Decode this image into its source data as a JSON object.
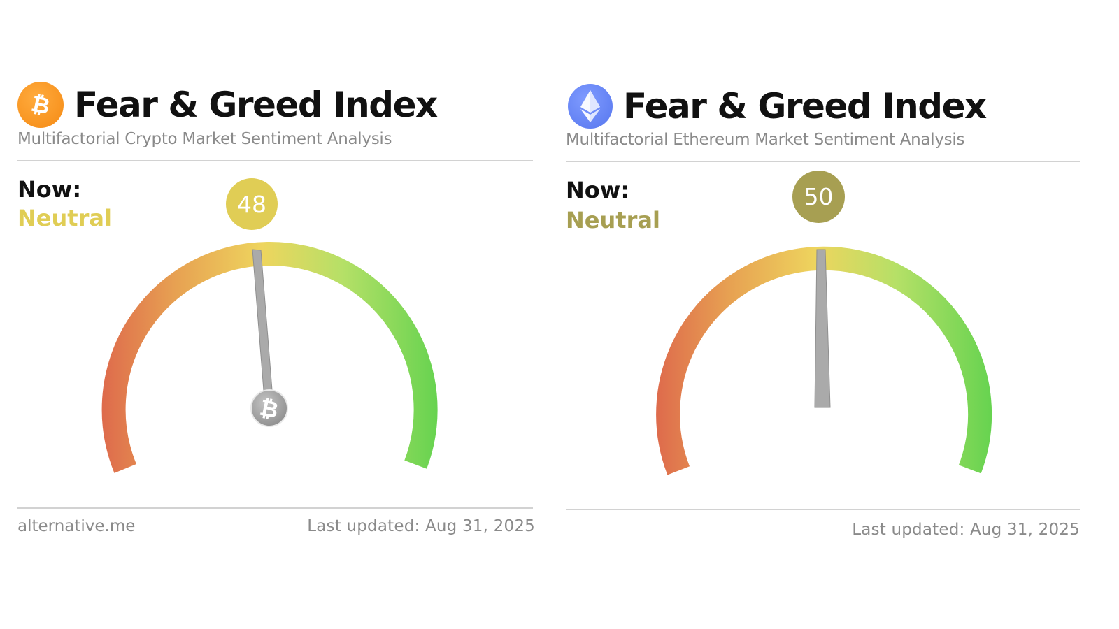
{
  "panels": [
    {
      "coin_icon": "bitcoin-icon",
      "title": "Fear & Greed Index",
      "subtitle": "Multifactorial Crypto Market Sentiment Analysis",
      "now_label": "Now:",
      "classification": "Neutral",
      "value": "48",
      "value_color": "#e0cd55",
      "classification_color": "#e0cd55",
      "needle_hub_icon": "bitcoin-icon",
      "source": "alternative.me",
      "last_updated": "Last updated: Aug 31, 2025"
    },
    {
      "coin_icon": "ethereum-icon",
      "title": "Fear & Greed Index",
      "subtitle": "Multifactorial Ethereum Market Sentiment Analysis",
      "now_label": "Now:",
      "classification": "Neutral",
      "value": "50",
      "value_color": "#a79f52",
      "classification_color": "#a79f52",
      "last_updated": "Last updated: Aug 31, 2025"
    }
  ],
  "gauge_colors": {
    "fear": "#e0694d",
    "neutral": "#eed65e",
    "greed": "#6ad452"
  }
}
